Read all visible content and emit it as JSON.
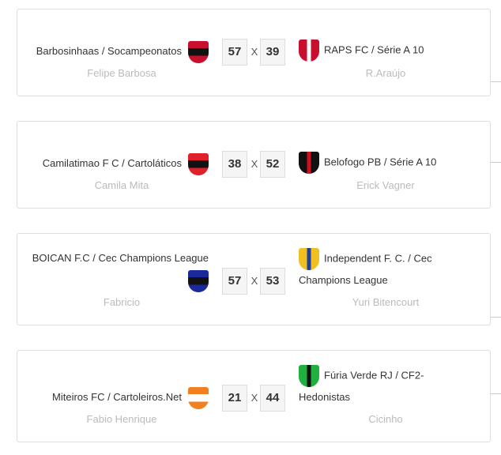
{
  "matches": [
    {
      "home": {
        "team": "Barbosinhaas / Socampeonatos",
        "owner": "Felipe Barbosa",
        "score": "57",
        "logo": "red-black-striped-shield",
        "colors": [
          "#c8102e",
          "#111111"
        ]
      },
      "away": {
        "team": "RAPS FC / Série A 10",
        "owner": "R.Araújo",
        "score": "39",
        "logo": "red-cross-laurel-crest",
        "colors": [
          "#c8102e",
          "#ffffff"
        ]
      },
      "separator": "X"
    },
    {
      "home": {
        "team": "Camilatimao F C / Cartoláticos",
        "owner": "Camila Mita",
        "score": "38",
        "logo": "red-black-round-crest",
        "colors": [
          "#e0202a",
          "#111111"
        ]
      },
      "away": {
        "team": "Belofogo PB / Série A 10",
        "owner": "Erick Vagner",
        "score": "52",
        "logo": "black-red-shield",
        "colors": [
          "#111111",
          "#d01020"
        ]
      },
      "separator": "X"
    },
    {
      "home": {
        "team": "BOICAN F.C / Cec Champions League",
        "owner": "Fabricio",
        "score": "57",
        "logo": "blue-black-shield",
        "colors": [
          "#1a2a9a",
          "#111111"
        ]
      },
      "away": {
        "team": "Independent F. C. / Cec Champions League",
        "owner": "Yuri Bitencourt",
        "score": "53",
        "logo": "yellow-blue-cross-shield",
        "colors": [
          "#f0c020",
          "#2040a0"
        ]
      },
      "separator": "X"
    },
    {
      "home": {
        "team": "Miteiros FC / Cartoleiros.Net",
        "owner": "Fabio Henrique",
        "score": "21",
        "logo": "orange-white-laurel-crest",
        "colors": [
          "#f08020",
          "#ffffff"
        ]
      },
      "away": {
        "team": "Fúria Verde RJ / CF2-Hedonistas",
        "owner": "Cicinho",
        "score": "44",
        "logo": "green-black-laurel-crest",
        "colors": [
          "#20b040",
          "#111111"
        ]
      },
      "separator": "X"
    }
  ]
}
